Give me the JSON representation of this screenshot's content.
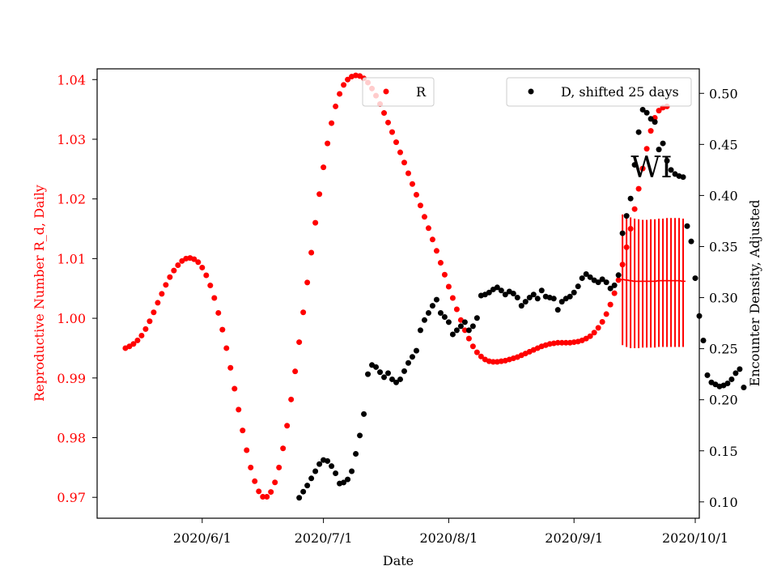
{
  "chart_data": {
    "type": "scatter",
    "xlabel": "Date",
    "ylabel_left": "Reproductive Number R_d, Daily",
    "ylabel_right": "Encounter Density, Adjusted",
    "x_range": [
      "2020-05-06",
      "2020-10-02"
    ],
    "x_ticks": [
      "2020-06-01",
      "2020-07-01",
      "2020-08-01",
      "2020-09-01",
      "2020-10-01"
    ],
    "x_tick_labels": [
      "2020/6/1",
      "2020/7/1",
      "2020/8/1",
      "2020/9/1",
      "2020/10/1"
    ],
    "ylim_left": [
      0.9665,
      1.0418
    ],
    "ylim_right": [
      0.084,
      0.524
    ],
    "yticks_left": [
      "0.97",
      "0.98",
      "0.99",
      "1.00",
      "1.01",
      "1.02",
      "1.03",
      "1.04"
    ],
    "yticks_right": [
      "0.10",
      "0.15",
      "0.20",
      "0.25",
      "0.30",
      "0.35",
      "0.40",
      "0.45",
      "0.50"
    ],
    "grid": false,
    "annotation": "WI",
    "colors": {
      "R": "#ff0000",
      "D": "#000000",
      "left_axis": "#ff0000",
      "right_axis": "#000000"
    },
    "legend_R": {
      "label": "R",
      "placement": "top-center"
    },
    "legend_D": {
      "label": "D, shifted 25 days",
      "placement": "top-right"
    },
    "series_R": {
      "name": "R",
      "axis": "left",
      "start_date": "2020-05-13",
      "values": [
        0.995,
        0.9953,
        0.9957,
        0.9963,
        0.9971,
        0.9982,
        0.9995,
        1.001,
        1.0026,
        1.0041,
        1.0056,
        1.0069,
        1.008,
        1.0089,
        1.0096,
        1.01,
        1.0101,
        1.0099,
        1.0094,
        1.0085,
        1.0072,
        1.0055,
        1.0034,
        1.0009,
        0.9981,
        0.995,
        0.9917,
        0.9882,
        0.9847,
        0.9812,
        0.9779,
        0.975,
        0.9727,
        0.971,
        0.9701,
        0.9701,
        0.9709,
        0.9725,
        0.975,
        0.9782,
        0.982,
        0.9864,
        0.9911,
        0.996,
        1.001,
        1.006,
        1.011,
        1.016,
        1.0208,
        1.0253,
        1.0293,
        1.0327,
        1.0355,
        1.0376,
        1.0391,
        1.04,
        1.0405,
        1.0407,
        1.0406,
        1.0402,
        1.0395,
        1.0385,
        1.0373,
        1.0359,
        1.0344,
        1.0328,
        1.0312,
        1.0295,
        1.0278,
        1.0261,
        1.0243,
        1.0225,
        1.0207,
        1.0189,
        1.017,
        1.0151,
        1.0132,
        1.0113,
        1.0093,
        1.0073,
        1.0053,
        1.0034,
        1.0015,
        0.9997,
        0.998,
        0.9966,
        0.9953,
        0.9943,
        0.9936,
        0.9931,
        0.9928,
        0.9927,
        0.9927,
        0.9928,
        0.9929,
        0.9931,
        0.9933,
        0.9935,
        0.9938,
        0.9941,
        0.9944,
        0.9947,
        0.995,
        0.9953,
        0.9955,
        0.9957,
        0.9958,
        0.9959,
        0.9959,
        0.9959,
        0.9959,
        0.996,
        0.9961,
        0.9963,
        0.9966,
        0.997,
        0.9976,
        0.9984,
        0.9994,
        1.0007,
        1.0023,
        1.0042,
        1.0064,
        1.009,
        1.0119,
        1.015,
        1.0183,
        1.0217,
        1.0251,
        1.0284,
        1.0314,
        1.0336,
        1.0348,
        1.0353,
        1.0355
      ]
    },
    "series_D": {
      "name": "D, shifted 25 days",
      "axis": "right",
      "start_date": "2020-06-25",
      "values": [
        0.104,
        0.11,
        0.116,
        0.123,
        0.13,
        0.137,
        0.141,
        0.14,
        0.135,
        0.128,
        0.118,
        0.119,
        0.122,
        0.13,
        0.147,
        0.165,
        0.186,
        0.225,
        0.234,
        0.232,
        0.227,
        0.222,
        0.226,
        0.22,
        0.217,
        0.22,
        0.228,
        0.236,
        0.242,
        0.248,
        0.268,
        0.278,
        0.285,
        0.292,
        0.298,
        0.285,
        0.281,
        0.276,
        0.264,
        0.268,
        0.272,
        0.276,
        0.268,
        0.272,
        0.28,
        0.302,
        0.303,
        0.305,
        0.308,
        0.31,
        0.307,
        0.303,
        0.306,
        0.304,
        0.3,
        0.292,
        0.296,
        0.3,
        0.303,
        0.299,
        0.307,
        0.301,
        0.3,
        0.299,
        0.288,
        0.296,
        0.299,
        0.301,
        0.305,
        0.311,
        0.319,
        0.323,
        0.32,
        0.317,
        0.315,
        0.318,
        0.315,
        0.309,
        0.312,
        0.322,
        0.363,
        0.38,
        0.397,
        0.43,
        0.462,
        0.484,
        0.481,
        0.475,
        0.472,
        0.445,
        0.451,
        0.434,
        0.425,
        0.421,
        0.419,
        0.418,
        0.37,
        0.355,
        0.319,
        0.282,
        0.258,
        0.224,
        0.217,
        0.215,
        0.213,
        0.214,
        0.216,
        0.22,
        0.226,
        0.23,
        0.212
      ]
    },
    "errorbars": {
      "axis": "left",
      "start_date": "2020-09-13",
      "center": [
        1.0065,
        1.0064,
        1.0063,
        1.0062,
        1.0062,
        1.0062,
        1.0062,
        1.0062,
        1.0062,
        1.0063,
        1.0063,
        1.0063,
        1.0063,
        1.0063,
        1.0063,
        1.0062
      ],
      "lower": [
        0.9955,
        0.9952,
        0.995,
        0.995,
        0.995,
        0.9951,
        0.9951,
        0.9951,
        0.9951,
        0.9952,
        0.9952,
        0.9952,
        0.9952,
        0.9952,
        0.9952,
        0.9952
      ],
      "upper": [
        1.0174,
        1.0172,
        1.0169,
        1.0167,
        1.0166,
        1.0165,
        1.0165,
        1.0166,
        1.0166,
        1.0167,
        1.0167,
        1.0168,
        1.0168,
        1.0168,
        1.0168,
        1.0167
      ]
    }
  }
}
